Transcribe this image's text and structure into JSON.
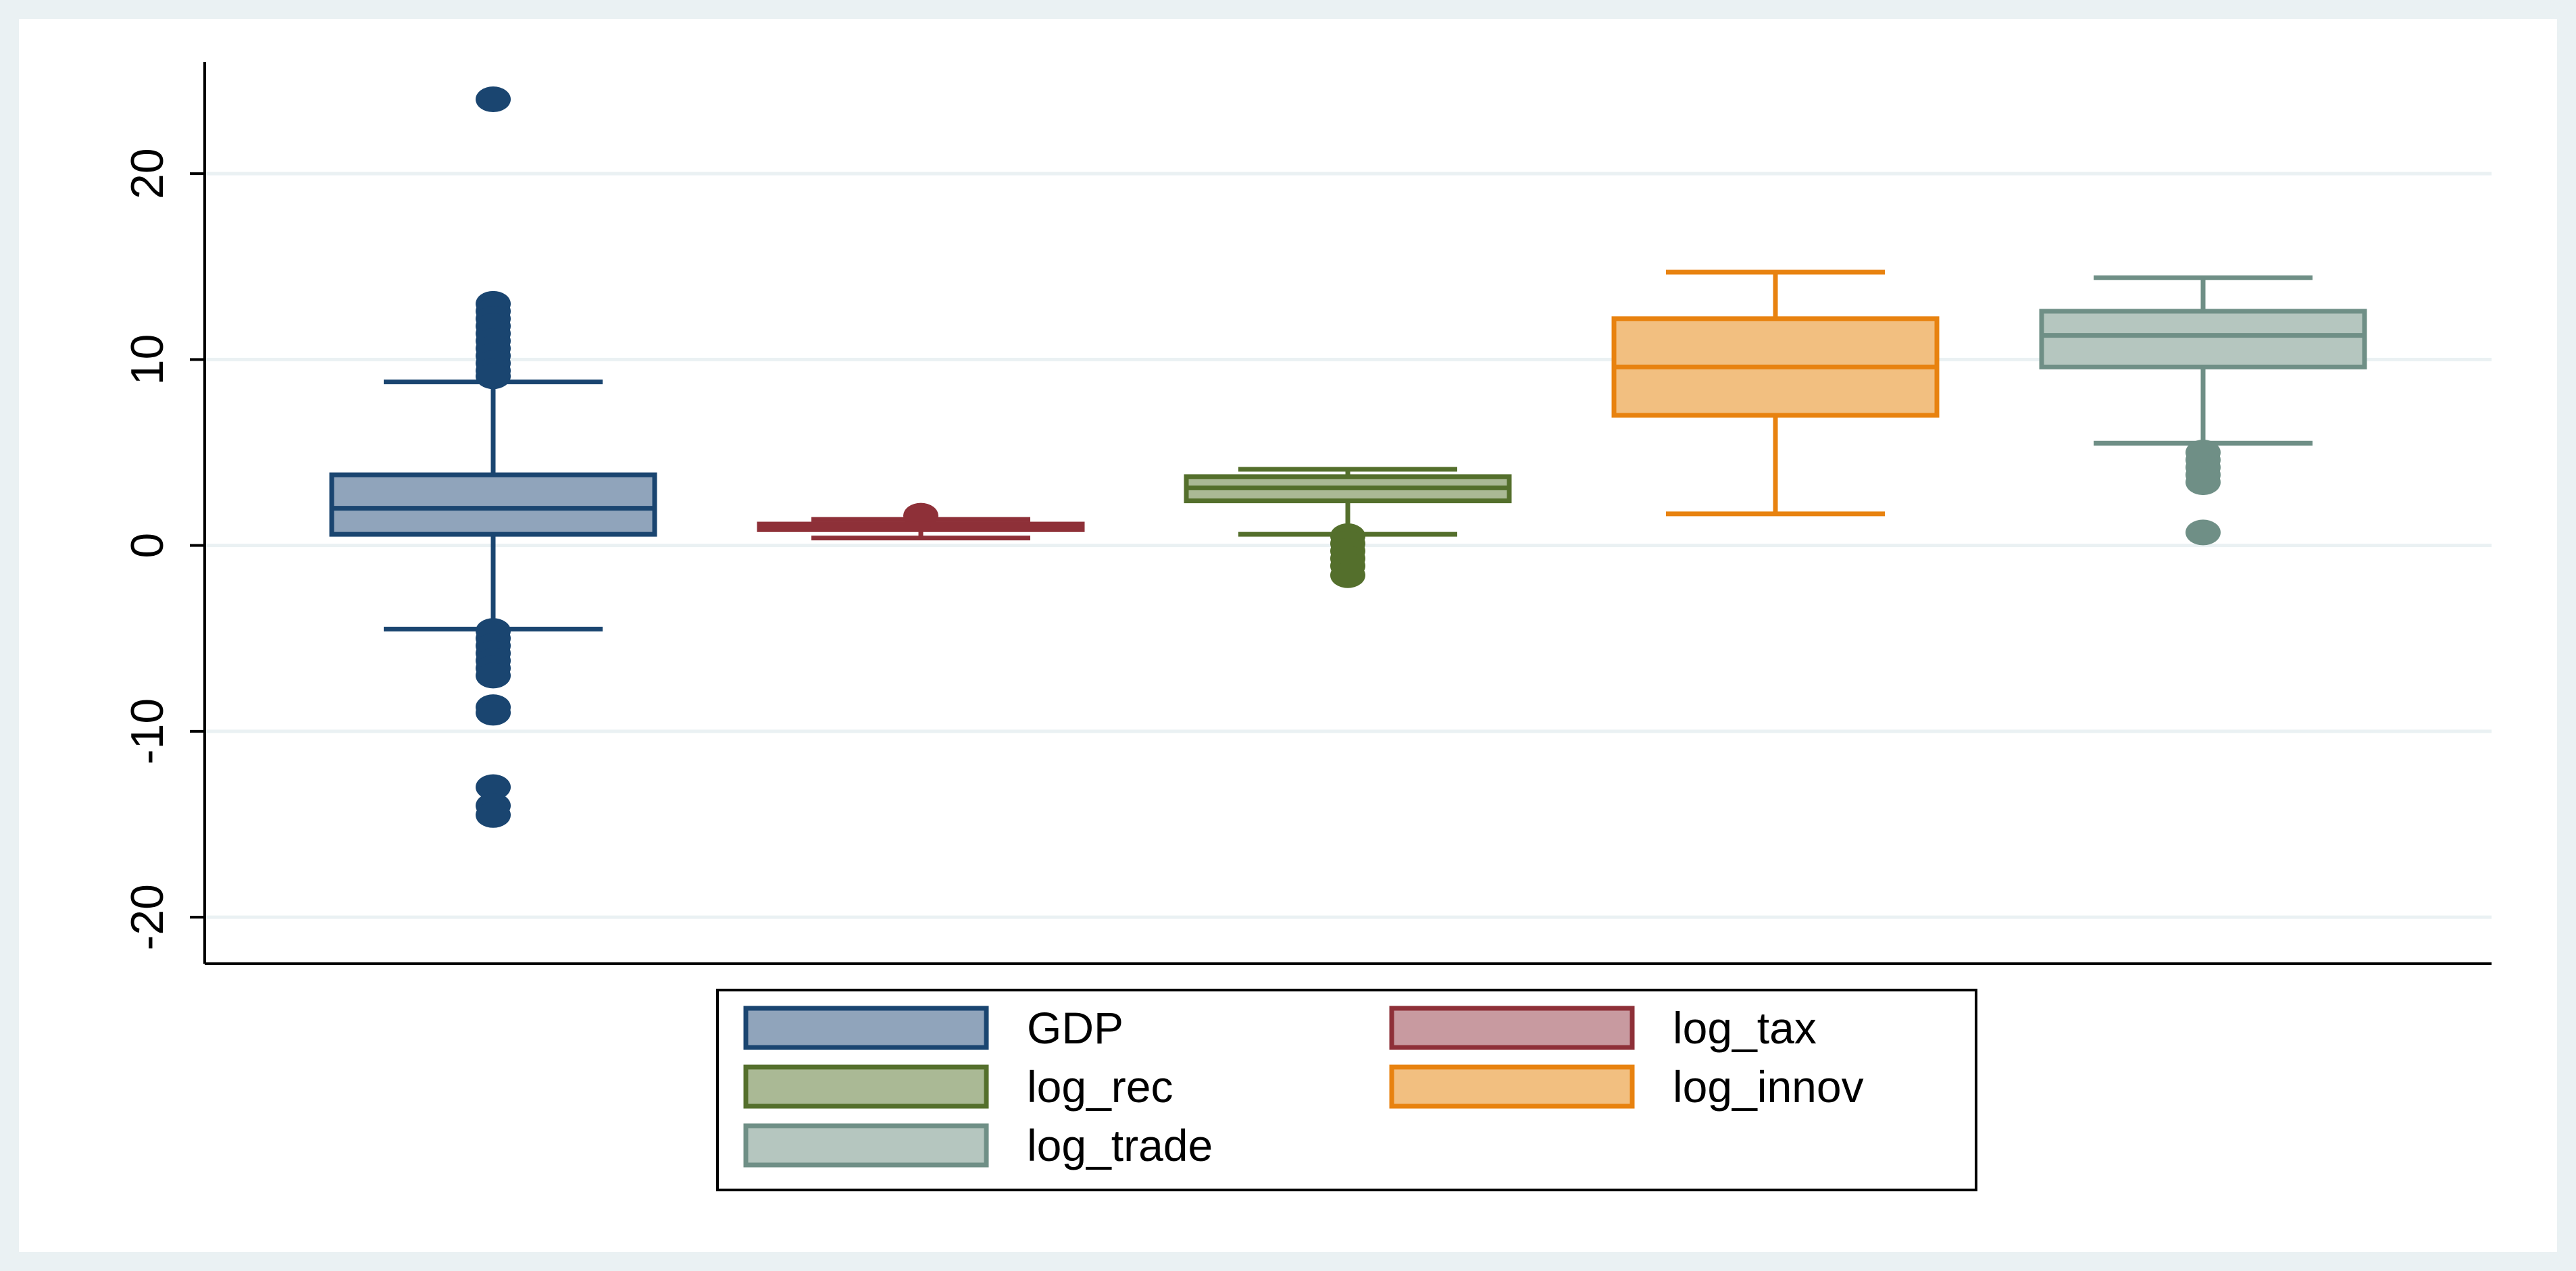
{
  "chart_data": {
    "type": "boxplot",
    "title": "",
    "xlabel": "",
    "ylabel": "",
    "ylim": [
      -22.5,
      26
    ],
    "y_ticks": [
      -20,
      -10,
      0,
      10,
      20
    ],
    "y_tick_labels": [
      "-20",
      "-10",
      "0",
      "10",
      "20"
    ],
    "grid": "horizontal",
    "legend_position": "bottom-center",
    "colors": {
      "outer_background": "#eaf1f3",
      "plot_background": "#ffffff",
      "grid": "#eaf1f3",
      "axis": "#000000"
    },
    "series": [
      {
        "name": "GDP",
        "min": -4.5,
        "q1": 0.6,
        "median": 2.0,
        "q3": 3.8,
        "max": 8.8,
        "outliers": [
          24,
          13,
          12.6,
          12.2,
          11.8,
          11.4,
          11,
          10.6,
          10.2,
          9.8,
          9.4,
          9.1,
          -4.6,
          -5,
          -5.4,
          -5.8,
          -6.2,
          -6.6,
          -7,
          -8.7,
          -9,
          -13,
          -14,
          -14.5
        ],
        "stroke": "#1a4570",
        "fill": "#90a4bb"
      },
      {
        "name": "log_tax",
        "min": 0.4,
        "q1": 0.85,
        "median": 1.0,
        "q3": 1.15,
        "max": 1.4,
        "outliers": [
          1.6
        ],
        "stroke": "#8e3038",
        "fill": "#c89aa0"
      },
      {
        "name": "log_rec",
        "min": 0.6,
        "q1": 2.4,
        "median": 3.1,
        "q3": 3.7,
        "max": 4.1,
        "outliers": [
          0.5,
          0.1,
          -0.3,
          -0.7,
          -1.1,
          -1.6
        ],
        "stroke": "#546f2c",
        "fill": "#aab995"
      },
      {
        "name": "log_innov",
        "min": 1.7,
        "q1": 7.0,
        "median": 9.6,
        "q3": 12.2,
        "max": 14.7,
        "outliers": [],
        "stroke": "#e8820f",
        "fill": "#f2bf80"
      },
      {
        "name": "log_trade",
        "min": 5.5,
        "q1": 9.6,
        "median": 11.3,
        "q3": 12.6,
        "max": 14.4,
        "outliers": [
          5.0,
          4.6,
          4.2,
          3.8,
          3.4,
          0.7
        ],
        "stroke": "#6f8f86",
        "fill": "#b5c6bf"
      }
    ]
  }
}
